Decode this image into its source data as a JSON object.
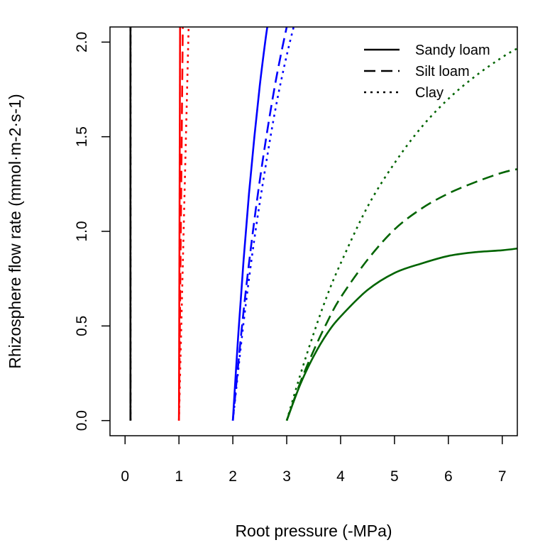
{
  "chart_data": {
    "type": "line",
    "title": "",
    "xlabel": "Root pressure (-MPa)",
    "ylabel": "Rhizosphere flow rate (mmol·m-2·s-1)",
    "xlim": [
      -0.28,
      7.28
    ],
    "ylim": [
      -0.08,
      2.08
    ],
    "xticks": [
      0,
      1,
      2,
      3,
      4,
      5,
      6,
      7
    ],
    "xtick_labels": [
      "0",
      "1",
      "2",
      "3",
      "4",
      "5",
      "6",
      "7"
    ],
    "yticks": [
      0,
      0.5,
      1,
      1.5,
      2
    ],
    "ytick_labels": [
      "0.0",
      "0.5",
      "1.0",
      "1.5",
      "2.0"
    ],
    "grid": false,
    "legend": {
      "placement": "top-right",
      "entries": [
        {
          "label": "Sandy loam",
          "linestyle": "solid"
        },
        {
          "label": "Silt loam",
          "linestyle": "dashed"
        },
        {
          "label": "Clay",
          "linestyle": "dotted"
        }
      ]
    },
    "series": [
      {
        "soil": "Sandy loam",
        "linestyle": "solid",
        "color": "#000000",
        "x": [
          0.1,
          0.1
        ],
        "y": [
          0,
          2.2
        ]
      },
      {
        "soil": "Silt loam",
        "linestyle": "dashed",
        "color": "#000000",
        "x": [
          0.1,
          0.1
        ],
        "y": [
          0,
          2.2
        ]
      },
      {
        "soil": "Clay",
        "linestyle": "dotted",
        "color": "#000000",
        "x": [
          0.1,
          0.1
        ],
        "y": [
          0,
          2.2
        ]
      },
      {
        "soil": "Sandy loam",
        "linestyle": "solid",
        "color": "#FF0000",
        "x": [
          1.0,
          1.022
        ],
        "y": [
          0,
          2.2
        ]
      },
      {
        "soil": "Silt loam",
        "linestyle": "dashed",
        "color": "#FF0000",
        "x": [
          1.0,
          1.075
        ],
        "y": [
          0,
          2.2
        ]
      },
      {
        "soil": "Clay",
        "linestyle": "dotted",
        "color": "#FF0000",
        "x": [
          1.0,
          1.19
        ],
        "y": [
          0,
          2.2
        ]
      },
      {
        "soil": "Sandy loam",
        "linestyle": "solid",
        "color": "#0000FF",
        "x": [
          2.0,
          2.1,
          2.2,
          2.3,
          2.4,
          2.5,
          2.6,
          2.65
        ],
        "y": [
          0,
          0.45,
          0.85,
          1.2,
          1.5,
          1.77,
          2.0,
          2.1
        ]
      },
      {
        "soil": "Silt loam",
        "linestyle": "dashed",
        "color": "#0000FF",
        "x": [
          2.0,
          2.2,
          2.4,
          2.6,
          2.8,
          3.0,
          3.1
        ],
        "y": [
          0,
          0.58,
          1.06,
          1.46,
          1.8,
          2.08,
          2.2
        ]
      },
      {
        "soil": "Clay",
        "linestyle": "dotted",
        "color": "#0000FF",
        "x": [
          2.0,
          2.2,
          2.4,
          2.6,
          2.8,
          3.0,
          3.2
        ],
        "y": [
          0,
          0.52,
          0.96,
          1.33,
          1.66,
          1.93,
          2.16
        ]
      },
      {
        "soil": "Sandy loam",
        "linestyle": "solid",
        "color": "#006400",
        "x": [
          3,
          3.25,
          3.5,
          3.75,
          4,
          4.5,
          5,
          5.5,
          6,
          6.5,
          7,
          7.3
        ],
        "y": [
          0,
          0.19,
          0.34,
          0.46,
          0.55,
          0.69,
          0.78,
          0.83,
          0.87,
          0.89,
          0.9,
          0.91
        ]
      },
      {
        "soil": "Silt loam",
        "linestyle": "dashed",
        "color": "#006400",
        "x": [
          3,
          3.25,
          3.5,
          3.75,
          4,
          4.5,
          5,
          5.5,
          6,
          6.5,
          7,
          7.3
        ],
        "y": [
          0,
          0.2,
          0.37,
          0.52,
          0.65,
          0.85,
          1.01,
          1.12,
          1.2,
          1.26,
          1.31,
          1.33
        ]
      },
      {
        "soil": "Clay",
        "linestyle": "dotted",
        "color": "#006400",
        "x": [
          3,
          3.25,
          3.5,
          3.75,
          4,
          4.5,
          5,
          5.5,
          6,
          6.5,
          7,
          7.3
        ],
        "y": [
          0,
          0.24,
          0.46,
          0.66,
          0.83,
          1.13,
          1.36,
          1.55,
          1.7,
          1.82,
          1.92,
          1.97
        ]
      }
    ]
  }
}
